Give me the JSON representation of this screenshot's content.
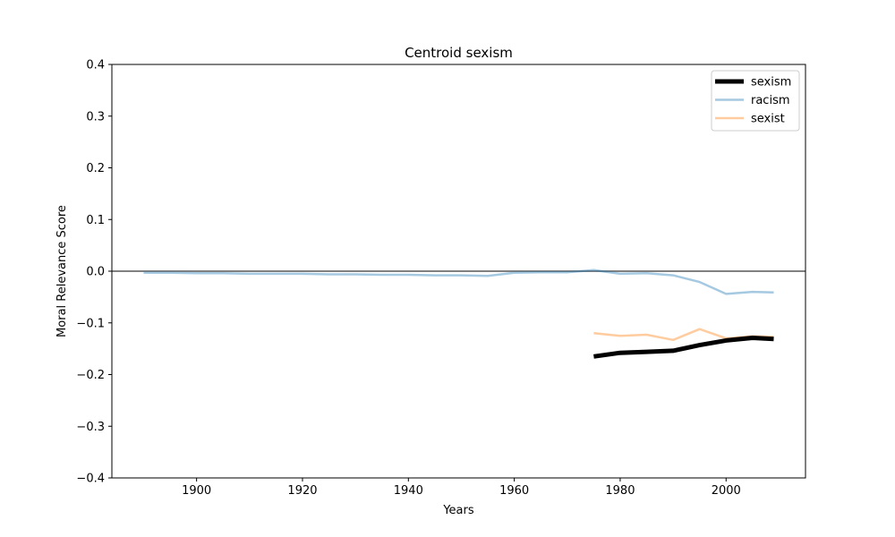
{
  "chart_data": {
    "type": "line",
    "title": "Centroid sexism",
    "xlabel": "Years",
    "ylabel": "Moral Relevance Score",
    "xlim": [
      1884,
      2015
    ],
    "ylim": [
      -0.4,
      0.4
    ],
    "x_ticks": [
      1900,
      1920,
      1940,
      1960,
      1980,
      2000
    ],
    "y_ticks": [
      -0.4,
      -0.3,
      -0.2,
      -0.1,
      0.0,
      0.1,
      0.2,
      0.3,
      0.4
    ],
    "x_tick_labels": [
      "1900",
      "1920",
      "1940",
      "1960",
      "1980",
      "2000"
    ],
    "y_tick_labels": [
      "−0.4",
      "−0.3",
      "−0.2",
      "−0.1",
      "0.0",
      "0.1",
      "0.2",
      "0.3",
      "0.4"
    ],
    "grid": false,
    "legend_position": "top-right",
    "reference_line": {
      "y": 0.0,
      "color": "#808080"
    },
    "series": [
      {
        "name": "sexism",
        "color": "#000000",
        "opacity": 1.0,
        "emphasis": "thick",
        "x": [
          1975,
          1980,
          1985,
          1990,
          1995,
          2000,
          2005,
          2009
        ],
        "y": [
          -0.165,
          -0.158,
          -0.156,
          -0.154,
          -0.143,
          -0.134,
          -0.129,
          -0.131
        ]
      },
      {
        "name": "racism",
        "color": "#1f77b4",
        "opacity": 0.4,
        "emphasis": "normal",
        "x": [
          1890,
          1895,
          1900,
          1905,
          1910,
          1915,
          1920,
          1925,
          1930,
          1935,
          1940,
          1945,
          1950,
          1955,
          1960,
          1965,
          1970,
          1975,
          1980,
          1985,
          1990,
          1995,
          2000,
          2005,
          2009
        ],
        "y": [
          -0.003,
          -0.003,
          -0.004,
          -0.004,
          -0.005,
          -0.005,
          -0.005,
          -0.006,
          -0.006,
          -0.007,
          -0.007,
          -0.008,
          -0.008,
          -0.009,
          -0.003,
          -0.002,
          -0.002,
          0.002,
          -0.005,
          -0.004,
          -0.008,
          -0.021,
          -0.044,
          -0.04,
          -0.041
        ]
      },
      {
        "name": "sexist",
        "color": "#ff7f0e",
        "opacity": 0.4,
        "emphasis": "normal",
        "x": [
          1975,
          1980,
          1985,
          1990,
          1995,
          2000,
          2005,
          2009
        ],
        "y": [
          -0.12,
          -0.125,
          -0.123,
          -0.133,
          -0.112,
          -0.13,
          -0.126,
          -0.127
        ]
      }
    ]
  }
}
